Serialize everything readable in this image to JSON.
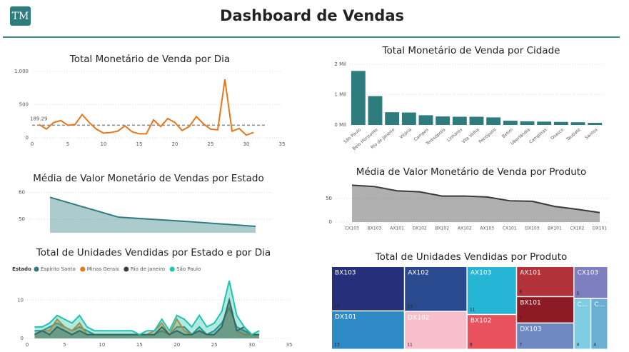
{
  "header": {
    "logo": "TM",
    "title": "Dashboard de Vendas"
  },
  "chart_data": [
    {
      "type": "line",
      "title": "Total Monetário de Venda por Dia",
      "x": [
        1,
        2,
        3,
        4,
        5,
        6,
        7,
        8,
        9,
        10,
        11,
        12,
        13,
        14,
        15,
        16,
        17,
        18,
        19,
        20,
        21,
        22,
        23,
        24,
        25,
        26,
        27,
        28,
        29,
        30,
        31
      ],
      "values": [
        200,
        130,
        230,
        260,
        190,
        200,
        350,
        230,
        130,
        70,
        80,
        100,
        180,
        90,
        60,
        60,
        270,
        170,
        290,
        230,
        110,
        170,
        320,
        210,
        130,
        120,
        880,
        100,
        140,
        40,
        80
      ],
      "color": "#e8751a",
      "average": 189.29,
      "xlim": [
        0,
        35
      ],
      "xticks": [
        0,
        5,
        10,
        15,
        20,
        25,
        30,
        35
      ],
      "ylim": [
        0,
        1000
      ],
      "yticks": [
        0,
        500,
        {
          "value": 1000,
          "label": "1.000"
        }
      ],
      "grid": true
    },
    {
      "type": "bar",
      "title": "Total Monetário de Venda por Cidade",
      "categories": [
        "São Paulo",
        "Belo Horizonte",
        "Rio de Janeiro",
        "Vitória",
        "Campos",
        "Teresópolis",
        "Linhares",
        "Vila Velha",
        "Petrópolis",
        "Betim",
        "Uberlândia",
        "Campinas",
        "Osasco",
        "Taubaté",
        "Santos"
      ],
      "values": [
        1780,
        950,
        420,
        410,
        320,
        280,
        270,
        270,
        250,
        140,
        120,
        110,
        100,
        90,
        70
      ],
      "color": "#2f7c7f",
      "ylim": [
        0,
        2000
      ],
      "yticks": [
        {
          "value": 0,
          "label": "0 Mil"
        },
        {
          "value": 1000,
          "label": "1 Mil"
        },
        {
          "value": 2000,
          "label": "2 Mil"
        }
      ],
      "grid": true
    },
    {
      "type": "area",
      "title": "Média de Valor Monetário de Vendas por Estado",
      "categories": [
        null,
        null,
        null,
        null
      ],
      "values": [
        58.2,
        50.8,
        49.2,
        47.4
      ],
      "color": "#2f7c7f",
      "ylim": [
        45,
        62
      ],
      "yticks": [
        50,
        60
      ],
      "grid": true
    },
    {
      "type": "area",
      "title": "Média de Valor Monetário de Venda por Produto",
      "categories": [
        "CX103",
        "BX103",
        "AX101",
        "DX102",
        "BX102",
        "AX102",
        "AX103",
        "CX101",
        "DX103",
        "BX101",
        "CX102",
        "DX101"
      ],
      "values": [
        78,
        75,
        66,
        64,
        55,
        55,
        53,
        45,
        44,
        33,
        27,
        20
      ],
      "color": "#3a3a3a",
      "ylim": [
        0,
        80
      ],
      "yticks": [
        0,
        50
      ],
      "grid": true
    },
    {
      "type": "multiarea",
      "title": "Total de Unidades Vendidas por Estado e por Dia",
      "legend_title": "Estado",
      "x": [
        1,
        2,
        3,
        4,
        5,
        6,
        7,
        8,
        9,
        10,
        11,
        12,
        13,
        14,
        15,
        16,
        17,
        18,
        19,
        20,
        21,
        22,
        23,
        24,
        25,
        26,
        27,
        28,
        29,
        30,
        31
      ],
      "series": [
        {
          "name": "Espírito Santo",
          "color": "#2f7c7f",
          "values": [
            2,
            2,
            3,
            4,
            3,
            2,
            3,
            2,
            1,
            1,
            1,
            1,
            1,
            1,
            1,
            1,
            1,
            2,
            1,
            3,
            3,
            1,
            3,
            1,
            2,
            4,
            8,
            3,
            2,
            1,
            1
          ]
        },
        {
          "name": "Minas Gerais",
          "color": "#e8751a",
          "values": [
            1,
            2,
            2,
            5,
            3,
            2,
            4,
            1,
            1,
            1,
            1,
            1,
            1,
            1,
            1,
            1,
            2,
            4,
            1,
            5,
            2,
            1,
            2,
            1,
            1,
            3,
            10,
            2,
            1,
            1,
            1
          ]
        },
        {
          "name": "Rio de Janeiro",
          "color": "#3b3b3b",
          "values": [
            1,
            2,
            1,
            3,
            2,
            1,
            2,
            1,
            1,
            1,
            1,
            1,
            1,
            1,
            1,
            1,
            1,
            3,
            1,
            2,
            1,
            1,
            2,
            1,
            1,
            3,
            10,
            2,
            3,
            1,
            1
          ]
        },
        {
          "name": "São Paulo",
          "color": "#1ec4b0",
          "values": [
            3,
            3,
            4,
            6,
            5,
            4,
            6,
            3,
            2,
            2,
            2,
            2,
            2,
            2,
            1,
            2,
            2,
            5,
            2,
            6,
            5,
            3,
            6,
            3,
            4,
            7,
            15,
            6,
            3,
            1,
            2
          ]
        }
      ],
      "xlim": [
        0,
        35
      ],
      "xticks": [
        0,
        5,
        10,
        15,
        20,
        25,
        30,
        35
      ],
      "ylim": [
        0,
        16
      ],
      "yticks": [
        0,
        10
      ],
      "grid": true
    },
    {
      "type": "treemap",
      "title": "Total de Unidades Vendidas por Produto",
      "categories": [
        "BX103",
        "AX102",
        "AX103",
        "AX101",
        "CX103",
        "DX101",
        "DX102",
        "BX102",
        "BX101",
        "DX103",
        "C...",
        "C..."
      ],
      "values": [
        15,
        13,
        11,
        8,
        5,
        13,
        11,
        8,
        7,
        7,
        4,
        4
      ],
      "colors": [
        "#262f7a",
        "#2a4a8f",
        "#26b5d4",
        "#b3323a",
        "#7d7fbf",
        "#2d8ac5",
        "#f7bfcc",
        "#e8525c",
        "#8d1b26",
        "#6e89c2",
        "#7fcde3",
        "#6bb0d4"
      ]
    }
  ]
}
